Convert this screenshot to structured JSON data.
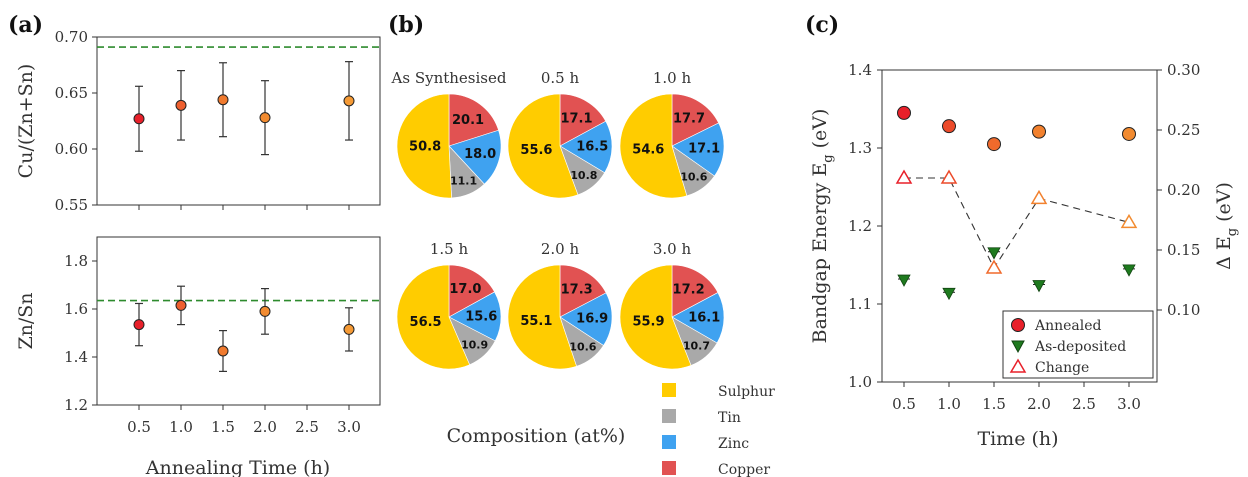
{
  "colors": {
    "sulphur": "#FFCC00",
    "tin": "#A9A9A9",
    "zinc": "#3FA2F0",
    "copper": "#E15252",
    "dashed_green": "#2E8B2E",
    "marker_red": "#E8202A",
    "marker_orange": "#F28B30",
    "marker_green": "#1E7A1E",
    "change": "#E8202A"
  },
  "panels": {
    "a": {
      "label": "(a)"
    },
    "b": {
      "label": "(b)",
      "composition_label": "Composition (at%)"
    },
    "c": {
      "label": "(c)"
    }
  },
  "chart_data": [
    {
      "id": "a-top",
      "type": "scatter",
      "xlabel": "",
      "ylabel": "Cu/(Zn+Sn)",
      "x_ticks": [
        "0.5",
        "1.0",
        "1.5",
        "2.0",
        "2.5",
        "3.0"
      ],
      "y_ticks": [
        "0.55",
        "0.60",
        "0.65",
        "0.70"
      ],
      "ylim": [
        0.55,
        0.7
      ],
      "reference_line": 0.691,
      "points": [
        {
          "x": 0.5,
          "y": 0.627,
          "err": 0.029
        },
        {
          "x": 1.0,
          "y": 0.639,
          "err": 0.031
        },
        {
          "x": 1.5,
          "y": 0.644,
          "err": 0.033
        },
        {
          "x": 2.0,
          "y": 0.628,
          "err": 0.033
        },
        {
          "x": 3.0,
          "y": 0.643,
          "err": 0.035
        }
      ]
    },
    {
      "id": "a-bottom",
      "type": "scatter",
      "xlabel": "Annealing Time (h)",
      "ylabel": "Zn/Sn",
      "x_ticks": [
        "0.5",
        "1.0",
        "1.5",
        "2.0",
        "2.5",
        "3.0"
      ],
      "y_ticks": [
        "1.2",
        "1.4",
        "1.6",
        "1.8"
      ],
      "ylim": [
        1.2,
        1.9
      ],
      "reference_line": 1.635,
      "points": [
        {
          "x": 0.5,
          "y": 1.535,
          "err": 0.088
        },
        {
          "x": 1.0,
          "y": 1.615,
          "err": 0.08
        },
        {
          "x": 1.5,
          "y": 1.425,
          "err": 0.085
        },
        {
          "x": 2.0,
          "y": 1.59,
          "err": 0.095
        },
        {
          "x": 3.0,
          "y": 1.515,
          "err": 0.09
        }
      ]
    },
    {
      "id": "b",
      "type": "pie",
      "legend": [
        "Sulphur",
        "Tin",
        "Zinc",
        "Copper"
      ],
      "pies": [
        {
          "title": "As Synthesised",
          "sulphur": 50.8,
          "tin": 11.1,
          "zinc": 18.0,
          "copper": 20.1
        },
        {
          "title": "0.5 h",
          "sulphur": 55.6,
          "tin": 10.8,
          "zinc": 16.5,
          "copper": 17.1
        },
        {
          "title": "1.0 h",
          "sulphur": 54.6,
          "tin": 10.6,
          "zinc": 17.1,
          "copper": 17.7
        },
        {
          "title": "1.5 h",
          "sulphur": 56.5,
          "tin": 10.9,
          "zinc": 15.6,
          "copper": 17.0
        },
        {
          "title": "2.0 h",
          "sulphur": 55.1,
          "tin": 10.6,
          "zinc": 16.9,
          "copper": 17.3
        },
        {
          "title": "3.0 h",
          "sulphur": 55.9,
          "tin": 10.7,
          "zinc": 16.1,
          "copper": 17.2
        }
      ]
    },
    {
      "id": "c",
      "type": "scatter",
      "xlabel": "Time (h)",
      "ylabel": "Bandgap Energy E",
      "ylabel_sub": "g",
      "ylabel_suffix": " (eV)",
      "y2label": "Δ E",
      "y2label_sub": "g",
      "y2label_suffix": " (eV)",
      "x_ticks": [
        "0.5",
        "1.0",
        "1.5",
        "2.0",
        "2.5",
        "3.0"
      ],
      "y_ticks": [
        "1.0",
        "1.1",
        "1.2",
        "1.3",
        "1.4"
      ],
      "y2_ticks": [
        "0.10",
        "0.15",
        "0.20",
        "0.25",
        "0.30"
      ],
      "ylim": [
        1.0,
        1.4
      ],
      "y2lim": [
        0.04,
        0.3
      ],
      "annealed": [
        1.345,
        1.328,
        1.305,
        1.321,
        1.318
      ],
      "as_deposited": [
        1.132,
        1.115,
        1.167,
        1.125,
        1.145
      ],
      "change": [
        0.21,
        0.21,
        0.135,
        0.193,
        0.173
      ],
      "legend": [
        "Annealed",
        "As-deposited",
        "Change"
      ]
    }
  ]
}
